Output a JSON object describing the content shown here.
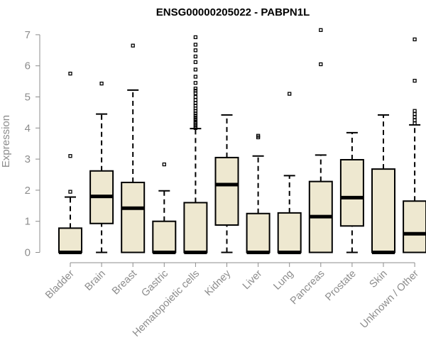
{
  "chart_data": {
    "type": "boxplot",
    "title": "ENSG00000205022 - PABPN1L",
    "ylabel": "Expression",
    "xlabel": "",
    "ylim": [
      0,
      7
    ],
    "yticks": [
      0,
      1,
      2,
      3,
      4,
      5,
      6,
      7
    ],
    "box_fill": "#EEE8D0",
    "categories": [
      "Bladder",
      "Brain",
      "Breast",
      "Gastric",
      "Hematopoietic cells",
      "Kidney",
      "Liver",
      "Lung",
      "Pancreas",
      "Prostate",
      "Skin",
      "Unknown / Other"
    ],
    "boxes": [
      {
        "q1": 0,
        "median": 0,
        "q3": 0.78,
        "whisker_low": 0,
        "whisker_high": 1.78,
        "outliers": [
          1.95,
          3.1,
          5.75
        ]
      },
      {
        "q1": 0.93,
        "median": 1.8,
        "q3": 2.62,
        "whisker_low": 0,
        "whisker_high": 4.45,
        "outliers": [
          5.43
        ]
      },
      {
        "q1": 0,
        "median": 1.42,
        "q3": 2.25,
        "whisker_low": 0,
        "whisker_high": 5.22,
        "outliers": [
          6.65
        ]
      },
      {
        "q1": 0,
        "median": 0,
        "q3": 1.0,
        "whisker_low": 0,
        "whisker_high": 1.98,
        "outliers": [
          2.83
        ]
      },
      {
        "q1": 0,
        "median": 0,
        "q3": 1.6,
        "whisker_low": 0,
        "whisker_high": 3.98,
        "outliers": [
          4.0,
          4.05,
          4.1,
          4.15,
          4.2,
          4.27,
          4.33,
          4.4,
          4.47,
          4.55,
          4.63,
          4.72,
          4.8,
          4.9,
          5.0,
          5.12,
          5.2,
          5.27,
          5.45,
          5.65,
          5.88,
          6.12,
          6.3,
          6.5,
          6.68,
          6.92
        ]
      },
      {
        "q1": 0.88,
        "median": 2.18,
        "q3": 3.05,
        "whisker_low": 0,
        "whisker_high": 4.42,
        "outliers": []
      },
      {
        "q1": 0,
        "median": 0,
        "q3": 1.25,
        "whisker_low": 0,
        "whisker_high": 3.1,
        "outliers": [
          3.7,
          3.75
        ]
      },
      {
        "q1": 0,
        "median": 0,
        "q3": 1.27,
        "whisker_low": 0,
        "whisker_high": 2.47,
        "outliers": [
          5.1
        ]
      },
      {
        "q1": 0,
        "median": 1.15,
        "q3": 2.28,
        "whisker_low": 0,
        "whisker_high": 3.13,
        "outliers": [
          6.05,
          7.15
        ]
      },
      {
        "q1": 0.85,
        "median": 1.76,
        "q3": 2.98,
        "whisker_low": 0,
        "whisker_high": 3.85,
        "outliers": []
      },
      {
        "q1": 0,
        "median": 0,
        "q3": 2.68,
        "whisker_low": 0,
        "whisker_high": 4.42,
        "outliers": []
      },
      {
        "q1": 0,
        "median": 0.6,
        "q3": 1.65,
        "whisker_low": 0,
        "whisker_high": 4.1,
        "outliers": [
          4.15,
          4.25,
          4.35,
          4.45,
          4.55,
          5.52,
          6.85
        ]
      }
    ]
  }
}
